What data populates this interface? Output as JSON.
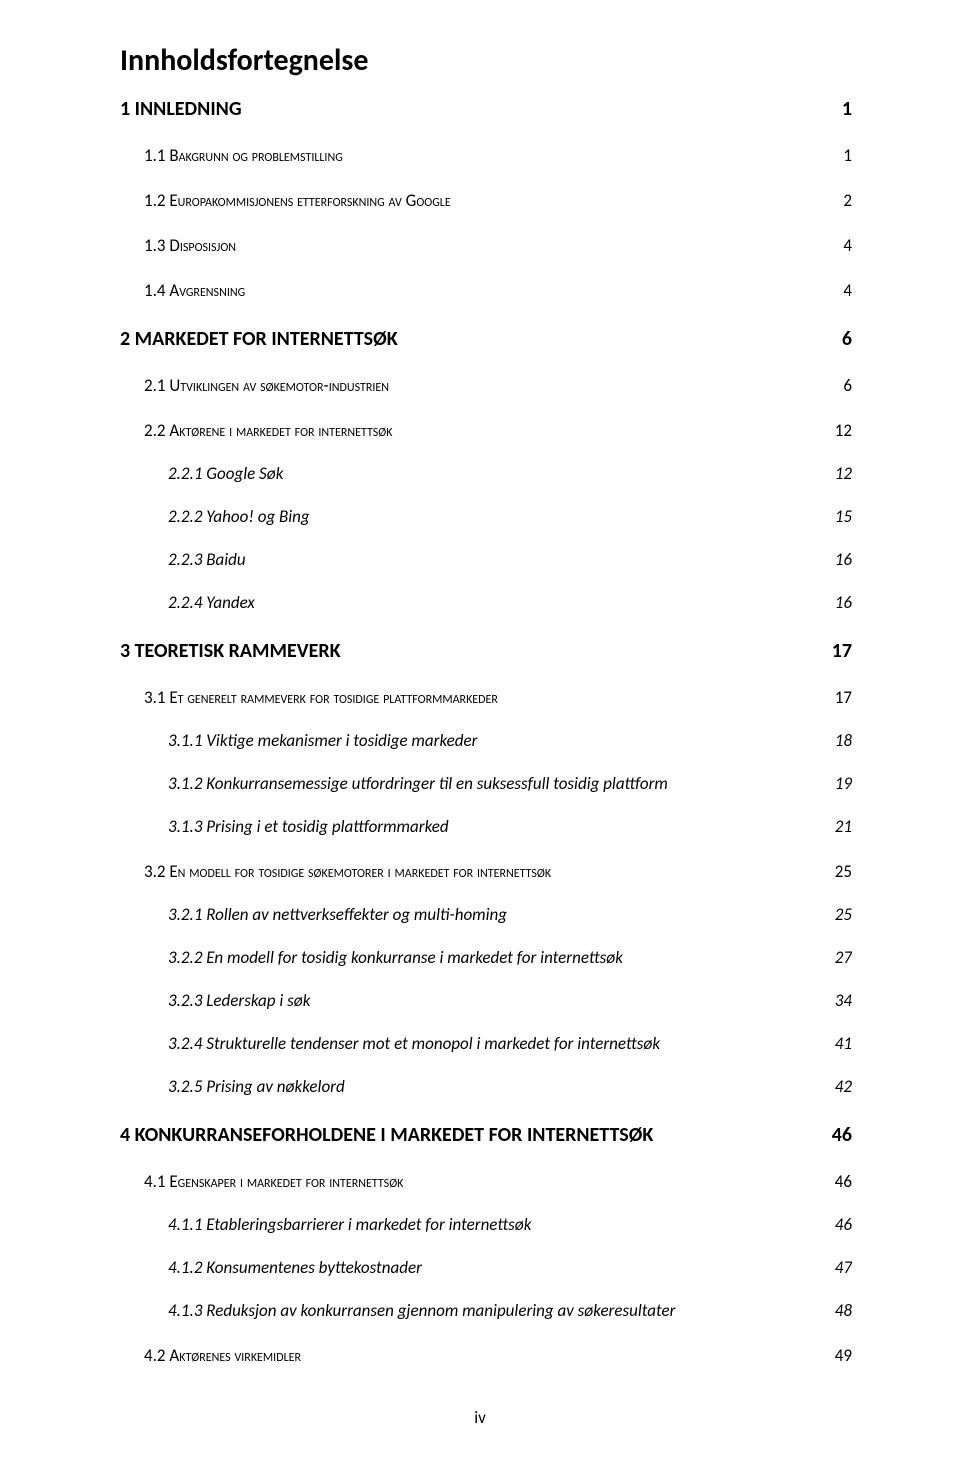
{
  "title": "Innholdsfortegnelse",
  "page_number_label": "iv",
  "entries": [
    {
      "level": 1,
      "label": "1 INNLEDNING",
      "page": "1"
    },
    {
      "level": 2,
      "label": "1.1 Bakgrunn og problemstilling",
      "page": "1"
    },
    {
      "level": 2,
      "label": "1.2 Europakommisjonens etterforskning av Google",
      "page": "2"
    },
    {
      "level": 2,
      "label": "1.3 Disposisjon",
      "page": "4"
    },
    {
      "level": 2,
      "label": "1.4 Avgrensning",
      "page": "4"
    },
    {
      "level": 1,
      "label": "2 MARKEDET FOR INTERNETTSØK",
      "page": "6"
    },
    {
      "level": 2,
      "label": "2.1 Utviklingen av søkemotor-industrien",
      "page": "6"
    },
    {
      "level": 2,
      "label": "2.2 Aktørene i markedet for internettsøk",
      "page": "12"
    },
    {
      "level": 3,
      "label": "2.2.1 Google Søk",
      "page": "12"
    },
    {
      "level": 3,
      "label": "2.2.2 Yahoo! og Bing",
      "page": "15"
    },
    {
      "level": 3,
      "label": "2.2.3 Baidu",
      "page": "16"
    },
    {
      "level": 3,
      "label": "2.2.4 Yandex",
      "page": "16"
    },
    {
      "level": 1,
      "label": "3 TEORETISK RAMMEVERK",
      "page": "17"
    },
    {
      "level": 2,
      "label": "3.1 Et generelt rammeverk for tosidige plattformmarkeder",
      "page": "17"
    },
    {
      "level": 3,
      "label": "3.1.1 Viktige mekanismer i tosidige markeder",
      "page": "18"
    },
    {
      "level": 3,
      "label": "3.1.2 Konkurransemessige utfordringer til en suksessfull tosidig plattform",
      "page": "19"
    },
    {
      "level": 3,
      "label": "3.1.3 Prising i et tosidig plattformmarked",
      "page": "21"
    },
    {
      "level": 2,
      "label": "3.2 En modell for tosidige søkemotorer i markedet for internettsøk",
      "page": "25"
    },
    {
      "level": 3,
      "label": "3.2.1 Rollen av nettverkseffekter og multi-homing",
      "page": "25"
    },
    {
      "level": 3,
      "label": "3.2.2 En modell for tosidig konkurranse i markedet for internettsøk",
      "page": "27"
    },
    {
      "level": 3,
      "label": "3.2.3 Lederskap i søk",
      "page": "34"
    },
    {
      "level": 3,
      "label": "3.2.4 Strukturelle tendenser mot et monopol i markedet for internettsøk",
      "page": "41"
    },
    {
      "level": 3,
      "label": "3.2.5 Prising av nøkkelord",
      "page": "42"
    },
    {
      "level": 1,
      "label": "4 KONKURRANSEFORHOLDENE I MARKEDET FOR INTERNETTSØK",
      "page": "46"
    },
    {
      "level": 2,
      "label": "4.1 Egenskaper i markedet for internettsøk",
      "page": "46"
    },
    {
      "level": 3,
      "label": "4.1.1 Etableringsbarrierer i markedet for internettsøk",
      "page": "46"
    },
    {
      "level": 3,
      "label": "4.1.2 Konsumentenes byttekostnader",
      "page": "47"
    },
    {
      "level": 3,
      "label": "4.1.3 Reduksjon av konkurransen gjennom manipulering av søkeresultater",
      "page": "48"
    },
    {
      "level": 2,
      "label": "4.2 Aktørenes virkemidler",
      "page": "49"
    }
  ]
}
